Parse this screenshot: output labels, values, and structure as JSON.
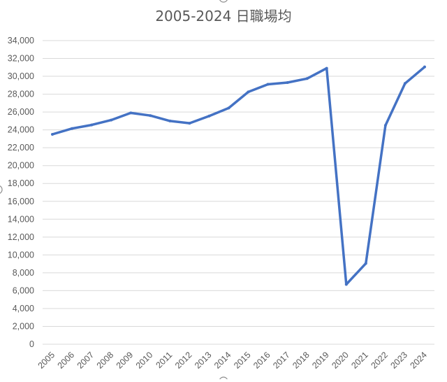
{
  "chart_data": {
    "type": "line",
    "title": "2005-2024 日職場均",
    "xlabel": "",
    "ylabel": "",
    "x": [
      "2005",
      "2006",
      "2007",
      "2008",
      "2009",
      "2010",
      "2011",
      "2012",
      "2013",
      "2014",
      "2015",
      "2016",
      "2017",
      "2018",
      "2019",
      "2020",
      "2021",
      "2022",
      "2023",
      "2024"
    ],
    "series": [
      {
        "values": [
          23500,
          24150,
          24550,
          25100,
          25900,
          25600,
          25000,
          24750,
          25550,
          26450,
          28250,
          29100,
          29300,
          29750,
          30900,
          6700,
          9050,
          24500,
          29200,
          31050
        ]
      }
    ],
    "ylim": [
      0,
      34000
    ],
    "yticks": [
      "0",
      "2,000",
      "4,000",
      "6,000",
      "8,000",
      "10,000",
      "12,000",
      "14,000",
      "16,000",
      "18,000",
      "20,000",
      "22,000",
      "24,000",
      "26,000",
      "28,000",
      "30,000",
      "32,000",
      "34,000"
    ],
    "grid": true,
    "legend": "none",
    "line_color": "#4472c4"
  }
}
